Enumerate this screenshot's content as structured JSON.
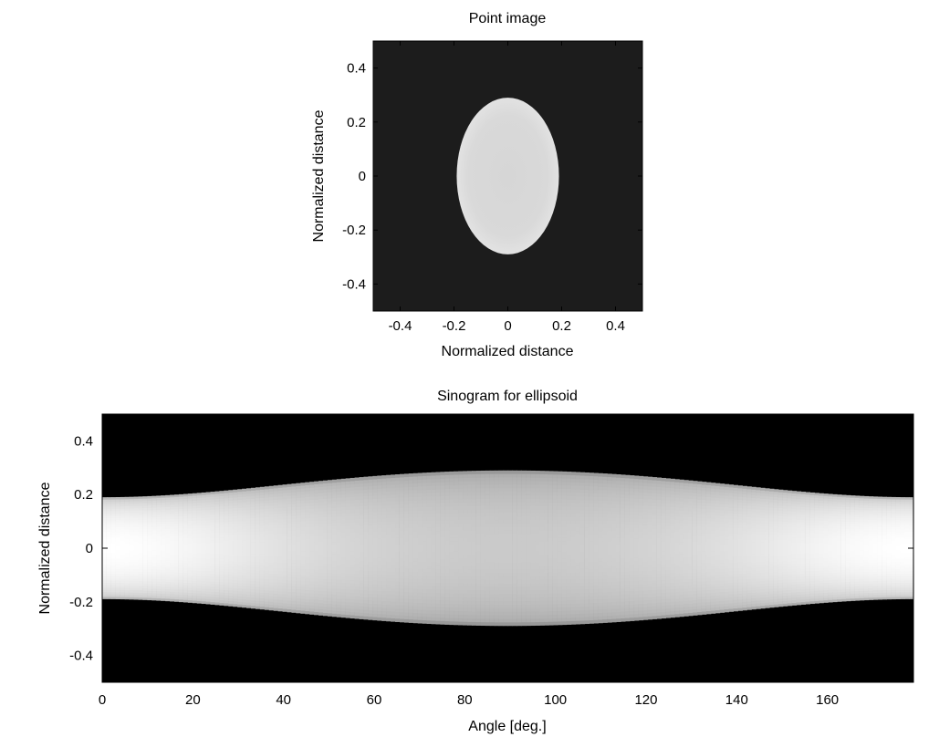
{
  "chart_data": [
    {
      "type": "heatmap",
      "title": "Point image",
      "xlabel": "Normalized distance",
      "ylabel": "Normalized distance",
      "xlim": [
        -0.5,
        0.5
      ],
      "ylim": [
        -0.5,
        0.5
      ],
      "xticks": [
        -0.4,
        -0.2,
        0,
        0.2,
        0.4
      ],
      "yticks": [
        0.4,
        0.2,
        0,
        -0.2,
        -0.4
      ],
      "xtick_labels": [
        "-0.4",
        "-0.2",
        "0",
        "0.2",
        "0.4"
      ],
      "ytick_labels": [
        "0.4",
        "0.2",
        "0",
        "-0.2",
        "-0.4"
      ],
      "colormap": "gray",
      "background_color": "#1c1c1c",
      "object": {
        "shape": "ellipse",
        "center": [
          0,
          0
        ],
        "semi_axis_x": 0.19,
        "semi_axis_y": 0.29,
        "color": "#d9d9d9"
      },
      "grid": false
    },
    {
      "type": "heatmap",
      "title": "Sinogram for ellipsoid",
      "xlabel": "Angle [deg.]",
      "ylabel": "Normalized distance",
      "xlim": [
        0,
        179
      ],
      "ylim": [
        -0.5,
        0.5
      ],
      "xticks": [
        0,
        20,
        40,
        60,
        80,
        100,
        120,
        140,
        160
      ],
      "yticks": [
        0.4,
        0.2,
        0,
        -0.2,
        -0.4
      ],
      "xtick_labels": [
        "0",
        "20",
        "40",
        "60",
        "80",
        "100",
        "120",
        "140",
        "160"
      ],
      "ytick_labels": [
        "0.4",
        "0.2",
        "0",
        "-0.2",
        "-0.4"
      ],
      "colormap": "gray",
      "semi_axis_x": 0.19,
      "semi_axis_y": 0.29,
      "half_width_at_0_deg": 0.19,
      "half_width_at_90_deg": 0.29,
      "grid": false
    }
  ]
}
